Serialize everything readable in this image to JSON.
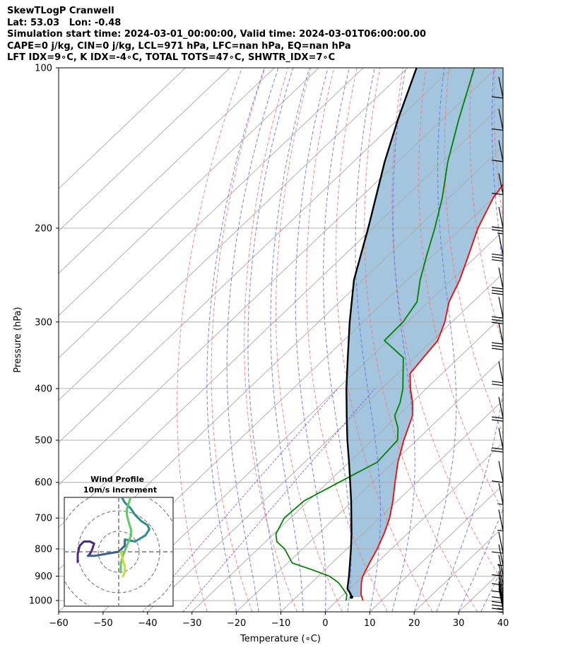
{
  "header": {
    "line1": "SkewTLogP Cranwell",
    "line2": "Lat: 53.03   Lon: -0.48",
    "line3": "Simulation start time: 2024-03-01_00:00:00, Valid time: 2024-03-01T06:00:00.00",
    "line4": "CAPE=0 j/kg, CIN=0 j/kg, LCL=971 hPa, LFC=nan hPa, EQ=nan hPa",
    "line5": "LFT IDX=9∘C, K IDX=-4∘C, TOTAL TOTS=47∘C, SHWTR_IDX=7∘C"
  },
  "colors": {
    "temperature": "#ff0000",
    "dewpoint": "#008000",
    "parcel": "#000000",
    "cape_fill": "#a3c6de",
    "dry_adiabat": "#ff7070",
    "moist_adiabat": "#5a6cf0",
    "mixing_ratio": "#8844cc",
    "isotherm": "#aaaaaa"
  },
  "chart_data": {
    "type": "skewt",
    "xlabel": "Temperature (∘C)",
    "ylabel": "Pressure (hPa)",
    "xlim": [
      -60,
      40
    ],
    "ylim": [
      1050,
      100
    ],
    "x_ticks": [
      -60,
      -50,
      -40,
      -30,
      -20,
      -10,
      0,
      10,
      20,
      30,
      40
    ],
    "y_ticks": [
      100,
      200,
      300,
      400,
      500,
      600,
      700,
      800,
      900,
      1000
    ],
    "y_scale": "log",
    "grid": true,
    "temperature_profile": [
      {
        "p": 1000,
        "t": 5.8
      },
      {
        "p": 975,
        "t": 4.0
      },
      {
        "p": 950,
        "t": 2.6
      },
      {
        "p": 925,
        "t": 1.2
      },
      {
        "p": 900,
        "t": 0.0
      },
      {
        "p": 850,
        "t": -1.6
      },
      {
        "p": 800,
        "t": -3.2
      },
      {
        "p": 750,
        "t": -5.2
      },
      {
        "p": 700,
        "t": -7.7
      },
      {
        "p": 650,
        "t": -11.0
      },
      {
        "p": 600,
        "t": -14.9
      },
      {
        "p": 550,
        "t": -19.0
      },
      {
        "p": 500,
        "t": -22.9
      },
      {
        "p": 450,
        "t": -26.7
      },
      {
        "p": 425,
        "t": -29.8
      },
      {
        "p": 400,
        "t": -33.6
      },
      {
        "p": 375,
        "t": -37.2
      },
      {
        "p": 350,
        "t": -38.0
      },
      {
        "p": 325,
        "t": -38.8
      },
      {
        "p": 300,
        "t": -41.6
      },
      {
        "p": 275,
        "t": -45.4
      },
      {
        "p": 250,
        "t": -48.2
      },
      {
        "p": 225,
        "t": -52.0
      },
      {
        "p": 200,
        "t": -56.3
      },
      {
        "p": 175,
        "t": -60.1
      },
      {
        "p": 160,
        "t": -61.5
      },
      {
        "p": 150,
        "t": -63.9
      },
      {
        "p": 125,
        "t": -68.0
      },
      {
        "p": 110,
        "t": -71.4
      },
      {
        "p": 100,
        "t": -74.8
      }
    ],
    "dewpoint_profile": [
      {
        "p": 1000,
        "t": 2.0
      },
      {
        "p": 975,
        "t": 0.8
      },
      {
        "p": 950,
        "t": -1.5
      },
      {
        "p": 925,
        "t": -4.0
      },
      {
        "p": 900,
        "t": -7.5
      },
      {
        "p": 875,
        "t": -13.0
      },
      {
        "p": 850,
        "t": -19.0
      },
      {
        "p": 800,
        "t": -24.0
      },
      {
        "p": 775,
        "t": -27.5
      },
      {
        "p": 750,
        "t": -29.5
      },
      {
        "p": 700,
        "t": -31.4
      },
      {
        "p": 650,
        "t": -31.0
      },
      {
        "p": 600,
        "t": -27.5
      },
      {
        "p": 550,
        "t": -23.7
      },
      {
        "p": 500,
        "t": -24.3
      },
      {
        "p": 475,
        "t": -27.0
      },
      {
        "p": 450,
        "t": -30.7
      },
      {
        "p": 425,
        "t": -32.6
      },
      {
        "p": 400,
        "t": -35.3
      },
      {
        "p": 350,
        "t": -42.5
      },
      {
        "p": 325,
        "t": -50.8
      },
      {
        "p": 300,
        "t": -51.0
      },
      {
        "p": 275,
        "t": -52.6
      },
      {
        "p": 250,
        "t": -57.1
      },
      {
        "p": 225,
        "t": -61.4
      },
      {
        "p": 200,
        "t": -66.0
      },
      {
        "p": 175,
        "t": -71.6
      },
      {
        "p": 150,
        "t": -78.8
      },
      {
        "p": 125,
        "t": -86.3
      },
      {
        "p": 100,
        "t": -95.0
      }
    ],
    "parcel_profile": [
      {
        "p": 985,
        "t": 2.4
      },
      {
        "p": 971,
        "t": 1.4
      },
      {
        "p": 950,
        "t": -0.5
      },
      {
        "p": 900,
        "t": -3.1
      },
      {
        "p": 850,
        "t": -6.0
      },
      {
        "p": 800,
        "t": -9.1
      },
      {
        "p": 750,
        "t": -12.5
      },
      {
        "p": 700,
        "t": -16.3
      },
      {
        "p": 650,
        "t": -20.4
      },
      {
        "p": 600,
        "t": -25.0
      },
      {
        "p": 550,
        "t": -30.0
      },
      {
        "p": 500,
        "t": -35.6
      },
      {
        "p": 450,
        "t": -41.5
      },
      {
        "p": 400,
        "t": -48.0
      },
      {
        "p": 350,
        "t": -55.0
      },
      {
        "p": 300,
        "t": -63.0
      },
      {
        "p": 250,
        "t": -72.0
      },
      {
        "p": 200,
        "t": -81.0
      },
      {
        "p": 150,
        "t": -93.0
      },
      {
        "p": 125,
        "t": -100.0
      },
      {
        "p": 100,
        "t": -108.0
      }
    ],
    "wind_barbs": [
      {
        "p": 1040,
        "speed_kt": 15
      },
      {
        "p": 1025,
        "speed_kt": 15
      },
      {
        "p": 1010,
        "speed_kt": 10
      },
      {
        "p": 990,
        "speed_kt": 10
      },
      {
        "p": 965,
        "speed_kt": 10
      },
      {
        "p": 935,
        "speed_kt": 10
      },
      {
        "p": 900,
        "speed_kt": 10
      },
      {
        "p": 860,
        "speed_kt": 5
      },
      {
        "p": 815,
        "speed_kt": 10
      },
      {
        "p": 740,
        "speed_kt": 5
      },
      {
        "p": 660,
        "speed_kt": 5
      },
      {
        "p": 600,
        "speed_kt": 10
      },
      {
        "p": 520,
        "speed_kt": 20
      },
      {
        "p": 455,
        "speed_kt": 20
      },
      {
        "p": 390,
        "speed_kt": 20
      },
      {
        "p": 330,
        "speed_kt": 30
      },
      {
        "p": 295,
        "speed_kt": 30
      },
      {
        "p": 260,
        "speed_kt": 30
      },
      {
        "p": 225,
        "speed_kt": 30
      },
      {
        "p": 200,
        "speed_kt": 25
      },
      {
        "p": 173,
        "speed_kt": 10
      },
      {
        "p": 150,
        "speed_kt": 10
      },
      {
        "p": 131,
        "speed_kt": 10
      },
      {
        "p": 114,
        "speed_kt": 10
      }
    ],
    "hodograph": {
      "title": "Wind Profile",
      "subtitle": "10m/s increment",
      "ring_spacing_ms": 10,
      "segments": [
        {
          "color": "#4b2a82",
          "points": [
            [
              -20,
              -5
            ],
            [
              -20,
              -1
            ],
            [
              -19,
              3
            ],
            [
              -17,
              5
            ],
            [
              -14,
              5
            ],
            [
              -12,
              4
            ],
            [
              -13,
              1
            ],
            [
              -14,
              -1
            ],
            [
              -15,
              -2
            ]
          ]
        },
        {
          "color": "#3a5f91",
          "points": [
            [
              -15,
              -2
            ],
            [
              -12,
              -2
            ],
            [
              -6,
              -1
            ],
            [
              0,
              0
            ],
            [
              3,
              3
            ],
            [
              3,
              6
            ]
          ]
        },
        {
          "color": "#2c8c8c",
          "points": [
            [
              3,
              6
            ],
            [
              8,
              5
            ],
            [
              13,
              8
            ],
            [
              15,
              11
            ],
            [
              14,
              13
            ],
            [
              11,
              15
            ],
            [
              8,
              18
            ],
            [
              6,
              21
            ],
            [
              3,
              24
            ],
            [
              0,
              29
            ],
            [
              -3,
              33
            ]
          ]
        },
        {
          "color": "#5ec86b",
          "points": [
            [
              1,
              -10
            ],
            [
              1,
              -6
            ],
            [
              2,
              -2
            ],
            [
              4,
              3
            ],
            [
              6,
              8
            ],
            [
              6,
              11
            ],
            [
              5,
              14
            ],
            [
              4,
              18
            ],
            [
              4,
              21
            ],
            [
              5,
              24
            ],
            [
              6,
              27
            ]
          ]
        },
        {
          "color": "#c8dc2c",
          "points": [
            [
              2,
              -12
            ],
            [
              3,
              -10
            ],
            [
              3,
              -7
            ],
            [
              2,
              -4
            ],
            [
              1,
              0
            ]
          ]
        }
      ]
    }
  }
}
